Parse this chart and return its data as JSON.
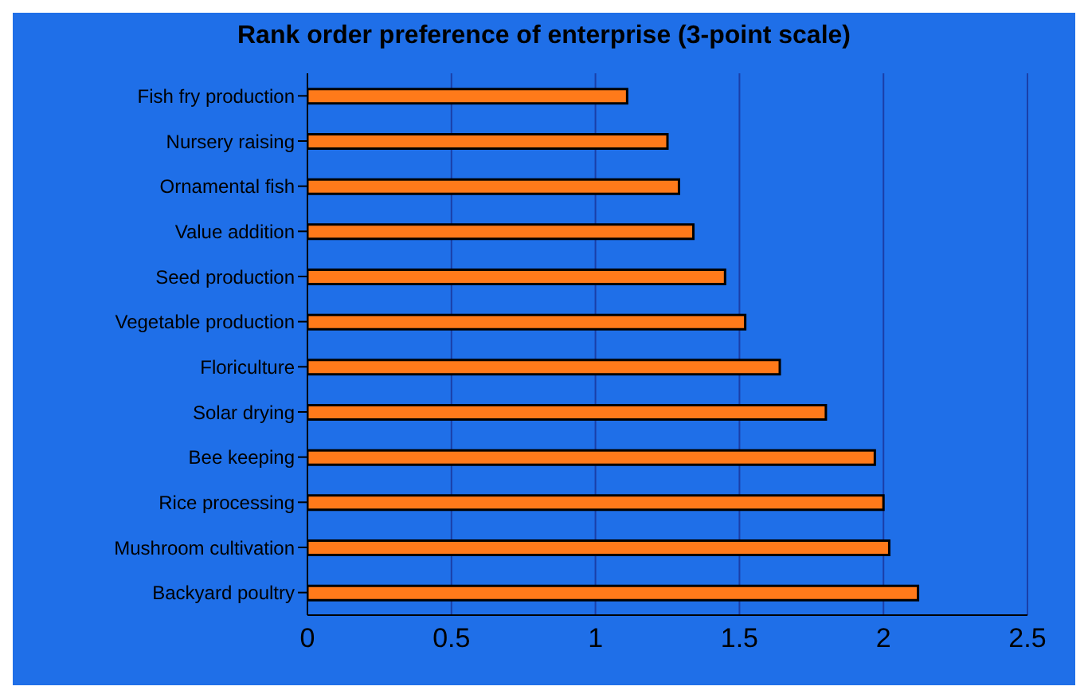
{
  "chart_data": {
    "type": "bar",
    "orientation": "horizontal",
    "title": "Rank order preference of enterprise (3-point scale)",
    "categories": [
      "Fish fry production",
      "Nursery raising",
      "Ornamental fish",
      "Value addition",
      "Seed production",
      "Vegetable production",
      "Floriculture",
      "Solar drying",
      "Bee keeping",
      "Rice processing",
      "Mushroom cultivation",
      "Backyard poultry"
    ],
    "values": [
      1.11,
      1.25,
      1.29,
      1.34,
      1.45,
      1.52,
      1.64,
      1.8,
      1.97,
      2.0,
      2.02,
      2.12
    ],
    "color": "#ff7a1a",
    "xlim": [
      0,
      2.5
    ],
    "xticks": [
      0,
      0.5,
      1,
      1.5,
      2,
      2.5
    ],
    "grid": "x"
  }
}
